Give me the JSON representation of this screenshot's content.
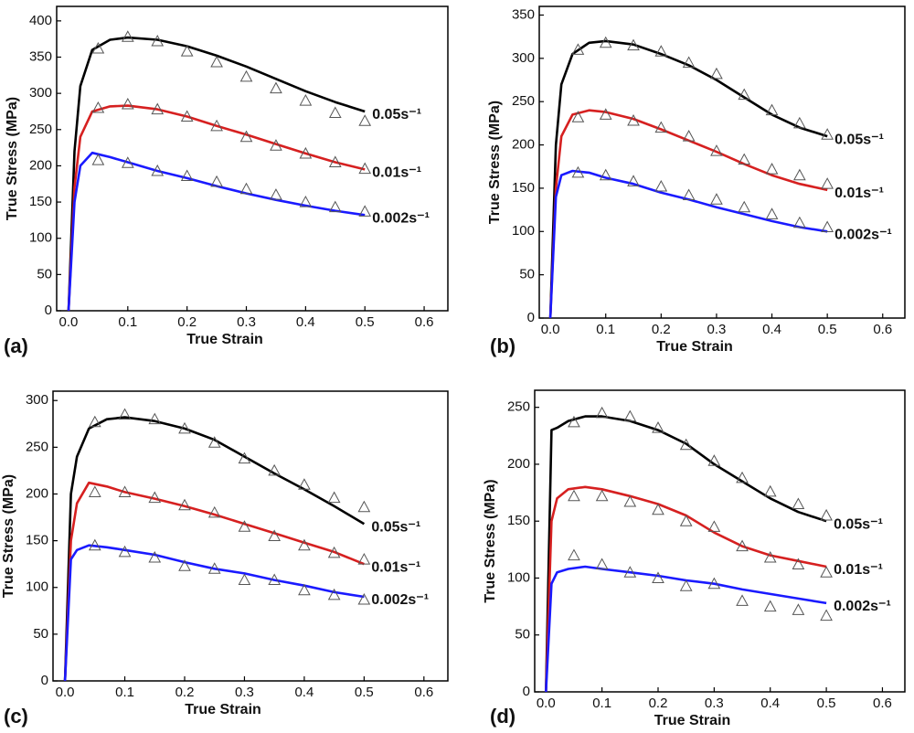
{
  "chart_data": [
    {
      "type": "line",
      "panel_label": "(a)",
      "x_label": "True Strain",
      "y_label": "True Stress (MPa)",
      "xlim": [
        -0.02,
        0.64
      ],
      "ylim": [
        0,
        420
      ],
      "xticks": [
        {
          "value": 0,
          "label": "0.0"
        },
        0.1,
        0.2,
        0.3,
        0.4,
        0.5,
        0.6
      ],
      "yticks": [
        0,
        50,
        100,
        150,
        200,
        250,
        300,
        350,
        400
      ],
      "series": [
        {
          "name": "0.05s⁻¹",
          "color": "#000000",
          "x": [
            0,
            0.01,
            0.02,
            0.04,
            0.07,
            0.1,
            0.15,
            0.2,
            0.25,
            0.3,
            0.35,
            0.4,
            0.45,
            0.5
          ],
          "values": [
            0,
            220,
            310,
            360,
            374,
            377,
            374,
            365,
            352,
            337,
            320,
            303,
            288,
            275
          ],
          "model_x": [
            0.05,
            0.1,
            0.15,
            0.2,
            0.25,
            0.3,
            0.35,
            0.4,
            0.45,
            0.5
          ],
          "model_values": [
            362,
            378,
            372,
            358,
            343,
            323,
            307,
            290,
            273,
            262
          ]
        },
        {
          "name": "0.01s⁻¹",
          "color": "#d62020",
          "x": [
            0,
            0.01,
            0.02,
            0.04,
            0.07,
            0.1,
            0.15,
            0.2,
            0.25,
            0.3,
            0.35,
            0.4,
            0.45,
            0.5
          ],
          "values": [
            0,
            170,
            240,
            275,
            282,
            283,
            278,
            268,
            255,
            243,
            230,
            217,
            205,
            195
          ],
          "model_x": [
            0.05,
            0.1,
            0.15,
            0.2,
            0.25,
            0.3,
            0.35,
            0.4,
            0.45,
            0.5
          ],
          "model_values": [
            280,
            285,
            278,
            268,
            255,
            240,
            228,
            217,
            205,
            196
          ]
        },
        {
          "name": "0.002s⁻¹",
          "color": "#1a1aff",
          "x": [
            0,
            0.01,
            0.02,
            0.04,
            0.07,
            0.1,
            0.15,
            0.2,
            0.25,
            0.3,
            0.35,
            0.4,
            0.45,
            0.5
          ],
          "values": [
            0,
            150,
            200,
            218,
            212,
            205,
            193,
            183,
            172,
            162,
            153,
            145,
            138,
            132
          ],
          "model_x": [
            0.05,
            0.1,
            0.15,
            0.2,
            0.25,
            0.3,
            0.35,
            0.4,
            0.45,
            0.5
          ],
          "model_values": [
            208,
            204,
            193,
            186,
            178,
            168,
            160,
            150,
            143,
            137
          ]
        }
      ]
    },
    {
      "type": "line",
      "panel_label": "(b)",
      "x_label": "True Strain",
      "y_label": "True Stress (MPa)",
      "xlim": [
        -0.02,
        0.64
      ],
      "ylim": [
        0,
        360
      ],
      "xticks": [
        {
          "value": 0,
          "label": "0.0"
        },
        0.1,
        0.2,
        0.3,
        0.4,
        0.5,
        0.6
      ],
      "yticks": [
        0,
        50,
        100,
        150,
        200,
        250,
        300,
        350
      ],
      "series": [
        {
          "name": "0.05s⁻¹",
          "color": "#000000",
          "x": [
            0,
            0.01,
            0.02,
            0.04,
            0.07,
            0.1,
            0.15,
            0.2,
            0.25,
            0.3,
            0.35,
            0.4,
            0.45,
            0.5
          ],
          "values": [
            0,
            200,
            270,
            305,
            318,
            320,
            316,
            305,
            292,
            275,
            255,
            235,
            220,
            210
          ],
          "model_x": [
            0.05,
            0.1,
            0.15,
            0.2,
            0.25,
            0.3,
            0.35,
            0.4,
            0.45,
            0.5
          ],
          "model_values": [
            310,
            318,
            315,
            308,
            295,
            282,
            258,
            240,
            225,
            212
          ]
        },
        {
          "name": "0.01s⁻¹",
          "color": "#d62020",
          "x": [
            0,
            0.01,
            0.02,
            0.04,
            0.07,
            0.1,
            0.15,
            0.2,
            0.25,
            0.3,
            0.35,
            0.4,
            0.45,
            0.5
          ],
          "values": [
            0,
            150,
            210,
            235,
            240,
            238,
            230,
            218,
            205,
            192,
            178,
            165,
            155,
            148
          ],
          "model_x": [
            0.05,
            0.1,
            0.15,
            0.2,
            0.25,
            0.3,
            0.35,
            0.4,
            0.45,
            0.5
          ],
          "model_values": [
            232,
            235,
            228,
            220,
            210,
            193,
            183,
            172,
            165,
            155
          ]
        },
        {
          "name": "0.002s⁻¹",
          "color": "#1a1aff",
          "x": [
            0,
            0.01,
            0.02,
            0.04,
            0.07,
            0.1,
            0.15,
            0.2,
            0.25,
            0.3,
            0.35,
            0.4,
            0.45,
            0.5
          ],
          "values": [
            0,
            140,
            165,
            170,
            168,
            162,
            155,
            145,
            137,
            128,
            120,
            112,
            105,
            100
          ],
          "model_x": [
            0.05,
            0.1,
            0.15,
            0.2,
            0.25,
            0.3,
            0.35,
            0.4,
            0.45,
            0.5
          ],
          "model_values": [
            168,
            165,
            158,
            152,
            142,
            137,
            128,
            120,
            110,
            105
          ]
        }
      ]
    },
    {
      "type": "line",
      "panel_label": "(c)",
      "x_label": "True Strain",
      "y_label": "True Stress (MPa)",
      "xlim": [
        -0.02,
        0.64
      ],
      "ylim": [
        0,
        310
      ],
      "xticks": [
        {
          "value": 0,
          "label": "0.0"
        },
        0.1,
        0.2,
        0.3,
        0.4,
        0.5,
        0.6
      ],
      "yticks": [
        0,
        50,
        100,
        150,
        200,
        250,
        300
      ],
      "series": [
        {
          "name": "0.05s⁻¹",
          "color": "#000000",
          "x": [
            0,
            0.01,
            0.02,
            0.04,
            0.07,
            0.1,
            0.15,
            0.2,
            0.25,
            0.3,
            0.35,
            0.4,
            0.45,
            0.5
          ],
          "values": [
            0,
            200,
            240,
            270,
            280,
            282,
            278,
            270,
            258,
            240,
            222,
            205,
            187,
            168
          ],
          "model_x": [
            0.05,
            0.1,
            0.15,
            0.2,
            0.25,
            0.3,
            0.35,
            0.4,
            0.45,
            0.5
          ],
          "model_values": [
            277,
            285,
            280,
            270,
            255,
            238,
            225,
            210,
            196,
            186
          ]
        },
        {
          "name": "0.01s⁻¹",
          "color": "#d62020",
          "x": [
            0,
            0.01,
            0.02,
            0.04,
            0.07,
            0.1,
            0.15,
            0.2,
            0.25,
            0.3,
            0.35,
            0.4,
            0.45,
            0.5
          ],
          "values": [
            0,
            150,
            190,
            212,
            208,
            202,
            195,
            187,
            178,
            168,
            158,
            148,
            138,
            125
          ],
          "model_x": [
            0.05,
            0.1,
            0.15,
            0.2,
            0.25,
            0.3,
            0.35,
            0.4,
            0.45,
            0.5
          ],
          "model_values": [
            202,
            202,
            196,
            188,
            180,
            165,
            155,
            145,
            137,
            130
          ]
        },
        {
          "name": "0.002s⁻¹",
          "color": "#1a1aff",
          "x": [
            0,
            0.01,
            0.02,
            0.04,
            0.07,
            0.1,
            0.15,
            0.2,
            0.25,
            0.3,
            0.35,
            0.4,
            0.45,
            0.5
          ],
          "values": [
            0,
            130,
            140,
            145,
            143,
            140,
            135,
            127,
            120,
            115,
            108,
            102,
            95,
            90
          ],
          "model_x": [
            0.05,
            0.1,
            0.15,
            0.2,
            0.25,
            0.3,
            0.35,
            0.4,
            0.45,
            0.5
          ],
          "model_values": [
            145,
            138,
            132,
            123,
            120,
            108,
            108,
            97,
            92,
            87
          ]
        }
      ]
    },
    {
      "type": "line",
      "panel_label": "(d)",
      "x_label": "True Strain",
      "y_label": "True Stress (MPa)",
      "xlim": [
        -0.02,
        0.64
      ],
      "ylim": [
        0,
        265
      ],
      "xticks": [
        {
          "value": 0,
          "label": "0.0"
        },
        0.1,
        0.2,
        0.3,
        0.4,
        0.5,
        0.6
      ],
      "yticks": [
        0,
        50,
        100,
        150,
        200,
        250
      ],
      "series": [
        {
          "name": "0.05s⁻¹",
          "color": "#000000",
          "x": [
            0,
            0.01,
            0.02,
            0.04,
            0.07,
            0.1,
            0.15,
            0.2,
            0.25,
            0.3,
            0.35,
            0.4,
            0.45,
            0.5
          ],
          "values": [
            0,
            230,
            232,
            238,
            242,
            242,
            238,
            230,
            218,
            200,
            185,
            170,
            158,
            150
          ],
          "model_x": [
            0.05,
            0.1,
            0.15,
            0.2,
            0.25,
            0.3,
            0.35,
            0.4,
            0.45,
            0.5
          ],
          "model_values": [
            237,
            245,
            242,
            232,
            217,
            203,
            188,
            176,
            165,
            155
          ]
        },
        {
          "name": "0.01s⁻¹",
          "color": "#d62020",
          "x": [
            0,
            0.01,
            0.02,
            0.04,
            0.07,
            0.1,
            0.15,
            0.2,
            0.25,
            0.3,
            0.35,
            0.4,
            0.45,
            0.5
          ],
          "values": [
            0,
            150,
            170,
            178,
            180,
            178,
            172,
            165,
            155,
            140,
            128,
            120,
            115,
            110
          ],
          "model_x": [
            0.05,
            0.1,
            0.15,
            0.2,
            0.25,
            0.3,
            0.35,
            0.4,
            0.45,
            0.5
          ],
          "model_values": [
            172,
            172,
            167,
            160,
            150,
            145,
            128,
            118,
            112,
            105
          ]
        },
        {
          "name": "0.002s⁻¹",
          "color": "#1a1aff",
          "x": [
            0,
            0.01,
            0.02,
            0.04,
            0.07,
            0.1,
            0.15,
            0.2,
            0.25,
            0.3,
            0.35,
            0.4,
            0.45,
            0.5
          ],
          "values": [
            0,
            95,
            105,
            108,
            110,
            108,
            105,
            102,
            98,
            95,
            90,
            86,
            82,
            78
          ],
          "model_x": [
            0.05,
            0.1,
            0.15,
            0.2,
            0.25,
            0.3,
            0.35,
            0.4,
            0.45,
            0.5
          ],
          "model_values": [
            120,
            112,
            105,
            100,
            93,
            95,
            80,
            75,
            72,
            67
          ]
        }
      ]
    }
  ]
}
